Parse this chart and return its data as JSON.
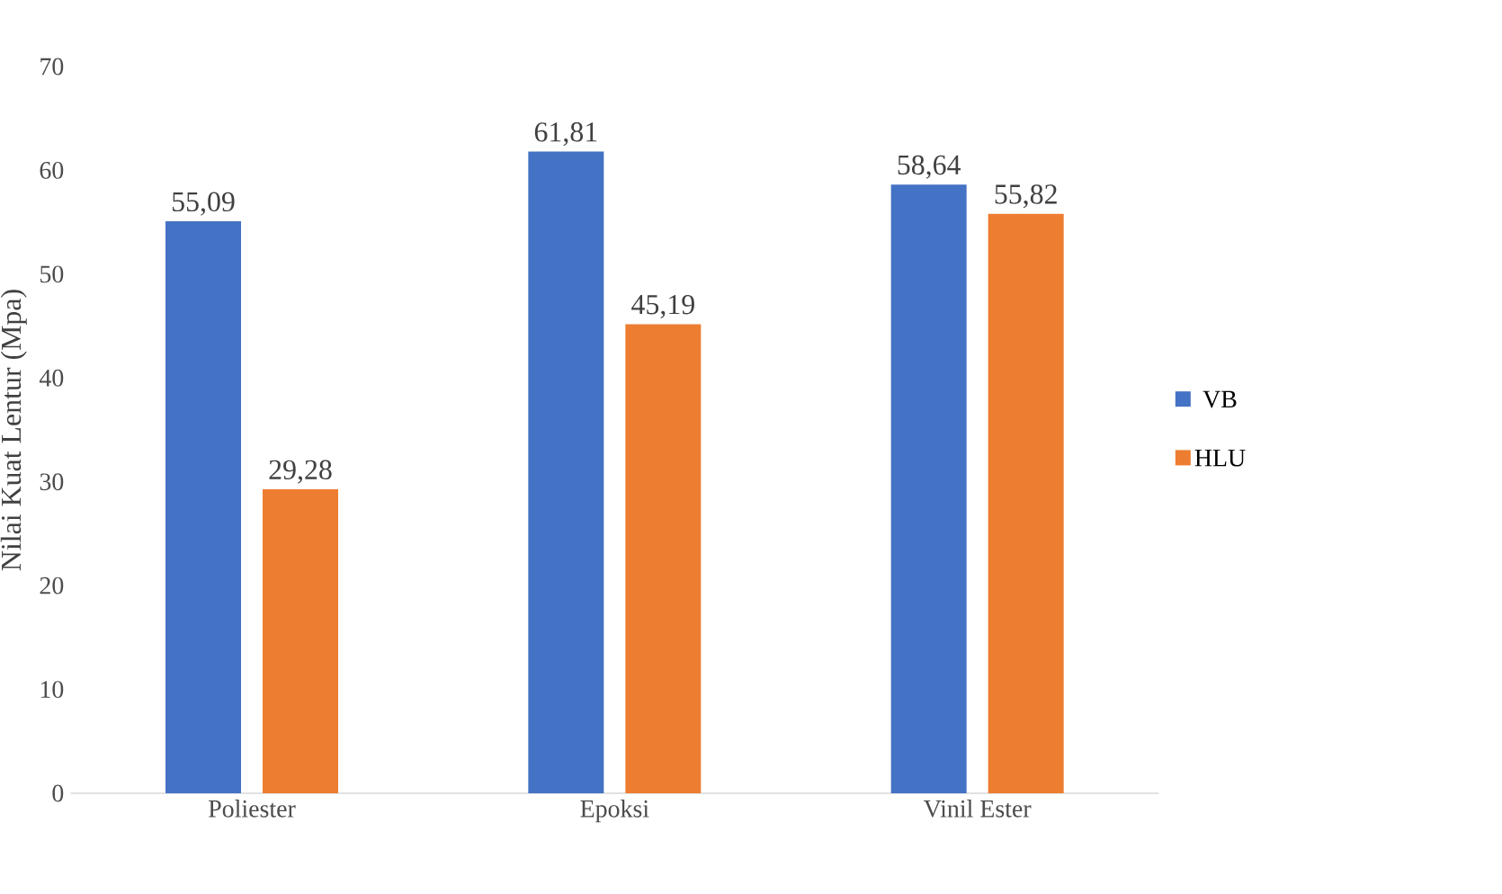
{
  "chart_data": {
    "type": "bar",
    "ylabel": "Nilai Kuat Lentur (Mpa)",
    "categories": [
      "Poliester",
      "Epoksi",
      "Vinil Ester"
    ],
    "series": [
      {
        "name": "VB",
        "color": "#4472c4",
        "values": [
          55.09,
          61.81,
          58.64
        ],
        "value_labels": [
          "55,09",
          "61,81",
          "58,64"
        ]
      },
      {
        "name": "HLU",
        "color": "#ed7d31",
        "values": [
          29.28,
          45.19,
          55.82
        ],
        "value_labels": [
          "29,28",
          "45,19",
          "55,82"
        ]
      }
    ],
    "ylim": [
      0,
      70
    ],
    "yticks": [
      0,
      10,
      20,
      30,
      40,
      50,
      60,
      70
    ],
    "legend": "right"
  }
}
